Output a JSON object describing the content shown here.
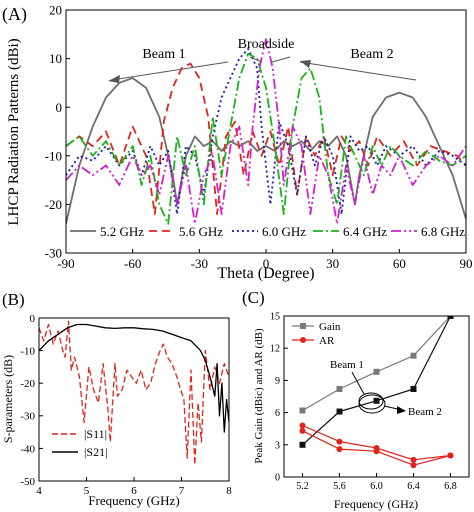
{
  "panels": [
    {
      "label": "(A)",
      "type": "line",
      "xlabel": "Theta (Degree)",
      "ylabel": "LHCP Radiation Patterns (dBi)",
      "xlim": [
        -90,
        90
      ],
      "ylim": [
        -30,
        20
      ],
      "xticks": [
        -90,
        -60,
        -30,
        0,
        30,
        60,
        90
      ],
      "yticks": [
        -30,
        -20,
        -10,
        0,
        10,
        20
      ],
      "annotations": [
        {
          "text": "Beam 1",
          "x": -58,
          "y": 15
        },
        {
          "text": "Broadside",
          "x": 0,
          "y": 17
        },
        {
          "text": "Beam 2",
          "x": 57,
          "y": 15
        }
      ],
      "legend": "bottom, single row",
      "series": [
        {
          "name": "5.2 GHz",
          "color": "#6e6e6e",
          "dash": "solid",
          "x": [
            -90,
            -84,
            -78,
            -72,
            -66,
            -60,
            -54,
            -48,
            -42,
            -40,
            -36,
            -32,
            -28,
            -24,
            -20,
            -16,
            -12,
            -8,
            -4,
            0,
            4,
            8,
            12,
            16,
            20,
            24,
            28,
            32,
            36,
            40,
            42,
            48,
            54,
            60,
            66,
            72,
            78,
            84,
            90
          ],
          "y": [
            -24,
            -12,
            -4,
            2,
            5,
            6,
            4,
            -2,
            -14,
            -20,
            -10,
            -6,
            -8,
            -7,
            -9,
            -7,
            -8,
            -7,
            -9,
            -8,
            -9,
            -7,
            -8,
            -7,
            -9,
            -7,
            -8,
            -6,
            -10,
            -20,
            -14,
            -2,
            2,
            3,
            2,
            -2,
            -8,
            -14,
            -23
          ]
        },
        {
          "name": "5.6 GHz",
          "color": "#e0241c",
          "dash": "8,5",
          "x": [
            -90,
            -84,
            -78,
            -72,
            -66,
            -60,
            -54,
            -50,
            -46,
            -42,
            -38,
            -34,
            -30,
            -26,
            -22,
            -18,
            -14,
            -10,
            -6,
            -2,
            2,
            6,
            10,
            14,
            18,
            22,
            26,
            30,
            34,
            38,
            42,
            46,
            50,
            56,
            62,
            68,
            74,
            80,
            86,
            90
          ],
          "y": [
            -8,
            -6,
            -8,
            -5,
            -12,
            -4,
            -10,
            -22,
            -3,
            4,
            8,
            9,
            6,
            -2,
            -22,
            -6,
            -3,
            -14,
            -5,
            -10,
            -5,
            -12,
            -4,
            -18,
            -6,
            -10,
            -6,
            -14,
            -6,
            -9,
            -7,
            -12,
            -6,
            -10,
            -7,
            -12,
            -8,
            -9,
            -10,
            -12
          ]
        },
        {
          "name": "6.0 GHz",
          "color": "#1a1aa8",
          "dash": "2,3",
          "x": [
            -90,
            -84,
            -78,
            -72,
            -66,
            -60,
            -56,
            -52,
            -48,
            -44,
            -40,
            -36,
            -32,
            -28,
            -24,
            -20,
            -16,
            -12,
            -8,
            -4,
            -2,
            2,
            6,
            10,
            14,
            18,
            22,
            26,
            30,
            34,
            38,
            42,
            46,
            50,
            54,
            60,
            66,
            72,
            78,
            84,
            90
          ],
          "y": [
            -14,
            -10,
            -11,
            -8,
            -12,
            -9,
            -14,
            -8,
            -12,
            -9,
            -22,
            -8,
            -10,
            -18,
            -6,
            2,
            6,
            10,
            12,
            8,
            -4,
            -20,
            -3,
            -8,
            -18,
            -6,
            -12,
            -6,
            -10,
            -22,
            -6,
            -9,
            -8,
            -12,
            -8,
            -10,
            -8,
            -12,
            -9,
            -10,
            -12
          ]
        },
        {
          "name": "6.4 GHz",
          "color": "#18b418",
          "dash": "10,3,2,3",
          "x": [
            -90,
            -84,
            -78,
            -72,
            -66,
            -60,
            -56,
            -52,
            -48,
            -44,
            -40,
            -36,
            -32,
            -28,
            -24,
            -20,
            -16,
            -12,
            -8,
            -4,
            0,
            4,
            8,
            12,
            16,
            20,
            24,
            28,
            32,
            36,
            40,
            44,
            48,
            52,
            56,
            60,
            66,
            72,
            78,
            84,
            90
          ],
          "y": [
            -8,
            -6,
            -10,
            -7,
            -12,
            -8,
            -16,
            -10,
            -20,
            -24,
            -6,
            -14,
            -8,
            -20,
            -2,
            -14,
            -4,
            6,
            11,
            10,
            4,
            -8,
            -22,
            -4,
            6,
            8,
            2,
            -14,
            -20,
            -6,
            -10,
            -14,
            -8,
            -12,
            -8,
            -10,
            -12,
            -9,
            -11,
            -12,
            -10
          ]
        },
        {
          "name": "6.8 GHz",
          "color": "#d020d0",
          "dash": "10,3,2,3,2,3",
          "x": [
            -90,
            -84,
            -78,
            -72,
            -66,
            -60,
            -56,
            -52,
            -48,
            -44,
            -40,
            -36,
            -32,
            -28,
            -24,
            -20,
            -16,
            -12,
            -8,
            -6,
            -3,
            0,
            3,
            6,
            8,
            12,
            16,
            20,
            24,
            28,
            32,
            36,
            40,
            44,
            48,
            52,
            56,
            60,
            66,
            72,
            78,
            84,
            90
          ],
          "y": [
            -15,
            -12,
            -14,
            -12,
            -16,
            -10,
            -14,
            -12,
            -18,
            -10,
            -20,
            -12,
            -24,
            -14,
            -10,
            -22,
            -8,
            -4,
            -16,
            -4,
            8,
            14,
            8,
            -4,
            -16,
            -4,
            -8,
            -22,
            -10,
            -14,
            -24,
            -12,
            -20,
            -10,
            -18,
            -12,
            -14,
            -10,
            -16,
            -12,
            -10,
            -12,
            -8
          ]
        }
      ]
    },
    {
      "label": "(B)",
      "type": "line",
      "xlabel": "Frequency (GHz)",
      "ylabel": "S-parameters (dB)",
      "xlim": [
        4,
        8
      ],
      "ylim": [
        -50,
        0
      ],
      "xticks": [
        4,
        5,
        6,
        7,
        8
      ],
      "yticks": [
        -50,
        -40,
        -30,
        -20,
        -10,
        0
      ],
      "legend": "lower-left",
      "series": [
        {
          "name": "|S11|",
          "sub": "11",
          "color": "#e0241c",
          "dash": "6,3",
          "x": [
            4.0,
            4.1,
            4.2,
            4.3,
            4.4,
            4.5,
            4.55,
            4.62,
            4.68,
            4.75,
            4.85,
            4.95,
            5.05,
            5.15,
            5.25,
            5.35,
            5.45,
            5.5,
            5.6,
            5.65,
            5.75,
            5.85,
            5.95,
            6.05,
            6.15,
            6.25,
            6.35,
            6.45,
            6.5,
            6.55,
            6.62,
            6.7,
            6.8,
            6.9,
            6.98,
            7.05,
            7.12,
            7.2,
            7.28,
            7.35,
            7.42,
            7.5,
            7.6,
            7.7,
            7.8,
            7.9,
            8.0
          ],
          "y": [
            -3,
            -7,
            -2,
            -8,
            -4,
            -10,
            -12,
            -1,
            -16,
            -12,
            -18,
            -32,
            -15,
            -22,
            -26,
            -14,
            -28,
            -38,
            -14,
            -24,
            -22,
            -16,
            -18,
            -20,
            -16,
            -22,
            -20,
            -14,
            -12,
            -10,
            -8,
            -12,
            -14,
            -18,
            -22,
            -25,
            -43,
            -16,
            -45,
            -26,
            -38,
            -10,
            -22,
            -15,
            -20,
            -14,
            -18
          ]
        },
        {
          "name": "|S21|",
          "sub": "21",
          "color": "#000000",
          "dash": "solid",
          "x": [
            4.0,
            4.2,
            4.4,
            4.6,
            4.8,
            5.0,
            5.2,
            5.4,
            5.6,
            5.8,
            6.0,
            6.2,
            6.4,
            6.6,
            6.8,
            7.0,
            7.2,
            7.4,
            7.5,
            7.6,
            7.7,
            7.75,
            7.8,
            7.85,
            7.9,
            7.95,
            8.0
          ],
          "y": [
            -10,
            -7,
            -5,
            -3,
            -2,
            -2,
            -2.5,
            -3,
            -3.2,
            -3,
            -3,
            -3.3,
            -3.5,
            -4,
            -5,
            -6,
            -7,
            -10,
            -13,
            -18,
            -24,
            -14,
            -30,
            -20,
            -35,
            -25,
            -32
          ]
        }
      ]
    },
    {
      "label": "(C)",
      "type": "line",
      "xlabel": "Frequency (GHz)",
      "ylabel": "Peak Gain (dBic) and AR (dB)",
      "xlim": [
        5.0,
        7.0
      ],
      "ylim": [
        0,
        15
      ],
      "xticks": [
        5.2,
        5.6,
        6.0,
        6.4,
        6.8
      ],
      "yticks": [
        0,
        3,
        6,
        9,
        12,
        15
      ],
      "legend": "top-left",
      "annotations": [
        {
          "text": "Beam 1",
          "x": 5.67,
          "y": 11.5
        },
        {
          "text": "Beam 2",
          "x": 6.48,
          "y": 6.3
        }
      ],
      "series": [
        {
          "name": "Gain",
          "color": "#7a7a7a",
          "marker": "square",
          "x": [
            5.2,
            5.6,
            6.0,
            6.4,
            6.8
          ],
          "y": [
            6.2,
            8.2,
            9.8,
            11.3,
            15.0
          ]
        },
        {
          "name": "Gain",
          "color": "#111111",
          "marker": "square",
          "x": [
            5.2,
            5.6,
            6.0,
            6.4,
            6.8
          ],
          "y": [
            3.0,
            6.1,
            7.1,
            8.2,
            15.0
          ]
        },
        {
          "name": "AR",
          "color": "#e0241c",
          "marker": "circle",
          "x": [
            5.2,
            5.6,
            6.0,
            6.4,
            6.8
          ],
          "y": [
            4.8,
            3.3,
            2.7,
            1.6,
            2.0
          ]
        },
        {
          "name": "AR",
          "color": "#e0241c",
          "marker": "circle",
          "x": [
            5.2,
            5.6,
            6.0,
            6.4,
            6.8
          ],
          "y": [
            4.3,
            2.6,
            2.4,
            1.1,
            2.0
          ]
        }
      ]
    }
  ]
}
